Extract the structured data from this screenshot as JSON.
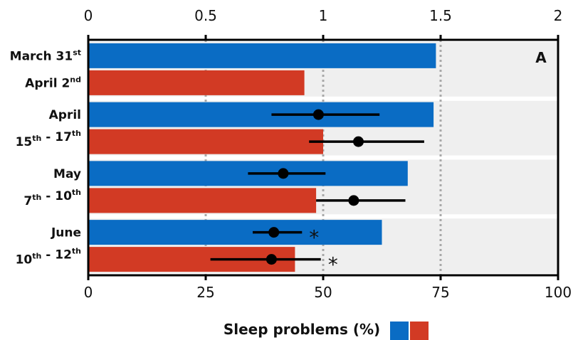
{
  "chart_data": {
    "type": "bar",
    "orientation": "horizontal",
    "panel_label": "A",
    "xlabel": "Sleep problems (%)",
    "xlim_bottom": [
      0,
      100
    ],
    "xticks_bottom": [
      "0",
      "25",
      "50",
      "75",
      "100"
    ],
    "xlim_top": [
      0,
      2
    ],
    "xticks_top": [
      "0",
      "0.5",
      "1",
      "1.5",
      "2"
    ],
    "categories": [
      {
        "line1": "March 31",
        "sup1": "st",
        "line2": "April 2",
        "sup2": "nd",
        "sup2_after": ""
      },
      {
        "line1": "April",
        "sup1": "",
        "line2": "15",
        "sup2": "th",
        "sup2_after": " - 17",
        "sup3": "th"
      },
      {
        "line1": "May",
        "sup1": "",
        "line2": "7",
        "sup2": "th",
        "sup2_after": " - 10",
        "sup3": "th"
      },
      {
        "line1": "June",
        "sup1": "",
        "line2": "10",
        "sup2": "th",
        "sup2_after": " - 12",
        "sup3": "th"
      }
    ],
    "series": [
      {
        "color": "#0A6CC4",
        "values": [
          74,
          73.5,
          68,
          62.5
        ]
      },
      {
        "color": "#D23A24",
        "values": [
          46,
          50,
          48.5,
          44
        ]
      }
    ],
    "estimates_top_axis": [
      {
        "category": 1,
        "series": 0,
        "value": 0.98,
        "low": 0.78,
        "high": 1.24
      },
      {
        "category": 1,
        "series": 1,
        "value": 1.15,
        "low": 0.94,
        "high": 1.43
      },
      {
        "category": 2,
        "series": 0,
        "value": 0.83,
        "low": 0.68,
        "high": 1.01
      },
      {
        "category": 2,
        "series": 1,
        "value": 1.13,
        "low": 0.97,
        "high": 1.35
      },
      {
        "category": 3,
        "series": 0,
        "value": 0.79,
        "low": 0.7,
        "high": 0.91,
        "star": "*"
      },
      {
        "category": 3,
        "series": 1,
        "value": 0.78,
        "low": 0.52,
        "high": 0.99,
        "star": "*"
      }
    ],
    "legend_colors": [
      "#0A6CC4",
      "#D23A24"
    ],
    "reference_lines_top_axis": [
      0.5,
      1,
      1.5
    ]
  }
}
